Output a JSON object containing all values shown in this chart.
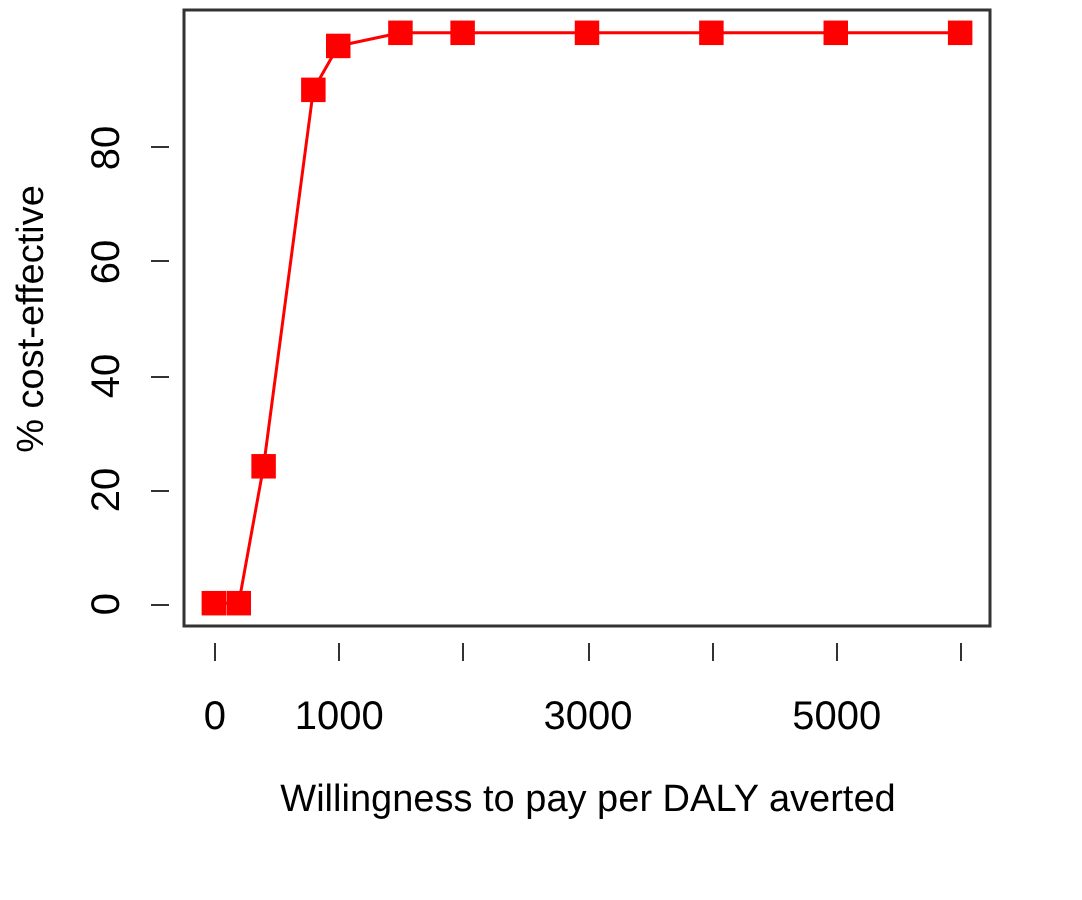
{
  "chart_data": {
    "type": "line",
    "xlabel": "Willingness to pay per DALY averted",
    "ylabel": "% cost-effective",
    "x": [
      0,
      200,
      400,
      800,
      1000,
      1500,
      2000,
      3000,
      4000,
      5000,
      6000
    ],
    "series": [
      {
        "color": "#ff0000",
        "values": [
          0,
          0,
          24,
          90,
          97.7,
          100,
          100,
          100,
          100,
          100,
          100
        ]
      }
    ],
    "marker": "square",
    "line_style": "solid",
    "grid": false,
    "xlim": [
      -240,
      6240
    ],
    "ylim": [
      -4,
      104
    ],
    "xticks": [
      0,
      1000,
      {
        "value": 2000,
        "label": null
      },
      3000,
      {
        "value": 4000,
        "label": null
      },
      5000,
      {
        "value": 6000,
        "label": null
      }
    ],
    "yticks": [
      0,
      20,
      40,
      60,
      80
    ]
  }
}
